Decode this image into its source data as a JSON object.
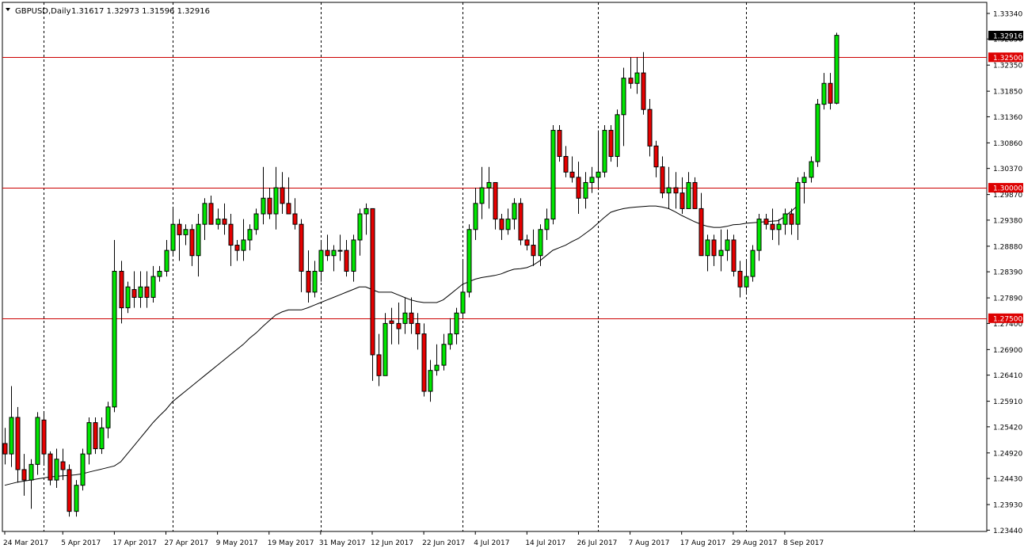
{
  "header": {
    "symbol_text": "GBPUSD,Daily",
    "ohlc_text": "1.31617 1.32973 1.31596 1.32916"
  },
  "colors": {
    "background": "#ffffff",
    "frame": "#000000",
    "bull": "#00e600",
    "bear": "#e60000",
    "wick": "#000000",
    "level_line": "#cc0000",
    "level_label_bg": "#dd0000",
    "current_label_bg": "#000000",
    "moving_average": "#000000",
    "grid": "#000000"
  },
  "chart_data": {
    "type": "candlestick",
    "symbol": "GBPUSD",
    "timeframe": "Daily",
    "grid": "vertical dashed",
    "ylim": [
      1.234,
      1.334
    ],
    "y_ticks": [
      "1.33340",
      "1.32850",
      "1.32350",
      "1.31850",
      "1.31360",
      "1.30860",
      "1.30370",
      "1.29870",
      "1.29380",
      "1.28880",
      "1.28390",
      "1.27890",
      "1.27400",
      "1.26900",
      "1.26410",
      "1.25910",
      "1.25420",
      "1.24920",
      "1.24430",
      "1.23930",
      "1.23440"
    ],
    "x_ticks": [
      {
        "i": 0,
        "label": "24 Mar 2017"
      },
      {
        "i": 9,
        "label": "5 Apr 2017"
      },
      {
        "i": 17,
        "label": "17 Apr 2017"
      },
      {
        "i": 25,
        "label": "27 Apr 2017"
      },
      {
        "i": 33,
        "label": "9 May 2017"
      },
      {
        "i": 41,
        "label": "19 May 2017"
      },
      {
        "i": 49,
        "label": "31 May 2017"
      },
      {
        "i": 57,
        "label": "12 Jun 2017"
      },
      {
        "i": 65,
        "label": "22 Jun 2017"
      },
      {
        "i": 73,
        "label": "4 Jul 2017"
      },
      {
        "i": 81,
        "label": "14 Jul 2017"
      },
      {
        "i": 89,
        "label": "26 Jul 2017"
      },
      {
        "i": 97,
        "label": "7 Aug 2017"
      },
      {
        "i": 105,
        "label": "17 Aug 2017"
      },
      {
        "i": 113,
        "label": "29 Aug 2017"
      },
      {
        "i": 121,
        "label": "8 Sep 2017"
      }
    ],
    "grid_lines_at": [
      6,
      26,
      49,
      71,
      92,
      115,
      141
    ],
    "horizontal_levels": [
      {
        "value": 1.325,
        "label": "1.32500"
      },
      {
        "value": 1.3,
        "label": "1.30000"
      },
      {
        "value": 1.275,
        "label": "1.27500"
      }
    ],
    "current_price": {
      "value": 1.32916,
      "label": "1.32916"
    },
    "candles": [
      [
        1.251,
        1.254,
        1.247,
        1.249
      ],
      [
        1.249,
        1.262,
        1.2465,
        1.256
      ],
      [
        1.256,
        1.258,
        1.2435,
        1.246
      ],
      [
        1.246,
        1.249,
        1.241,
        1.244
      ],
      [
        1.244,
        1.248,
        1.2385,
        1.247
      ],
      [
        1.247,
        1.257,
        1.245,
        1.256
      ],
      [
        1.2555,
        1.257,
        1.247,
        1.249
      ],
      [
        1.249,
        1.2495,
        1.243,
        1.244
      ],
      [
        1.244,
        1.25,
        1.2425,
        1.248
      ],
      [
        1.2475,
        1.25,
        1.244,
        1.246
      ],
      [
        1.246,
        1.247,
        1.237,
        1.238
      ],
      [
        1.238,
        1.244,
        1.237,
        1.243
      ],
      [
        1.243,
        1.25,
        1.242,
        1.249
      ],
      [
        1.249,
        1.256,
        1.247,
        1.255
      ],
      [
        1.255,
        1.256,
        1.249,
        1.25
      ],
      [
        1.25,
        1.256,
        1.249,
        1.254
      ],
      [
        1.254,
        1.259,
        1.252,
        1.258
      ],
      [
        1.258,
        1.29,
        1.257,
        1.284
      ],
      [
        1.284,
        1.286,
        1.274,
        1.277
      ],
      [
        1.277,
        1.282,
        1.276,
        1.281
      ],
      [
        1.2805,
        1.284,
        1.277,
        1.279
      ],
      [
        1.279,
        1.284,
        1.277,
        1.281
      ],
      [
        1.281,
        1.284,
        1.277,
        1.279
      ],
      [
        1.279,
        1.285,
        1.278,
        1.283
      ],
      [
        1.283,
        1.285,
        1.282,
        1.284
      ],
      [
        1.284,
        1.29,
        1.283,
        1.288
      ],
      [
        1.288,
        1.296,
        1.287,
        1.293
      ],
      [
        1.293,
        1.294,
        1.286,
        1.291
      ],
      [
        1.291,
        1.293,
        1.289,
        1.292
      ],
      [
        1.292,
        1.293,
        1.285,
        1.287
      ],
      [
        1.287,
        1.295,
        1.283,
        1.293
      ],
      [
        1.293,
        1.298,
        1.29,
        1.297
      ],
      [
        1.297,
        1.2985,
        1.293,
        1.293
      ],
      [
        1.293,
        1.296,
        1.292,
        1.294
      ],
      [
        1.294,
        1.297,
        1.291,
        1.293
      ],
      [
        1.293,
        1.295,
        1.285,
        1.289
      ],
      [
        1.289,
        1.29,
        1.286,
        1.288
      ],
      [
        1.288,
        1.294,
        1.286,
        1.29
      ],
      [
        1.29,
        1.293,
        1.288,
        1.292
      ],
      [
        1.292,
        1.296,
        1.291,
        1.295
      ],
      [
        1.295,
        1.304,
        1.293,
        1.298
      ],
      [
        1.298,
        1.3,
        1.294,
        1.295
      ],
      [
        1.295,
        1.304,
        1.292,
        1.3
      ],
      [
        1.3,
        1.303,
        1.295,
        1.297
      ],
      [
        1.297,
        1.302,
        1.295,
        1.295
      ],
      [
        1.295,
        1.298,
        1.292,
        1.293
      ],
      [
        1.293,
        1.294,
        1.28,
        1.284
      ],
      [
        1.284,
        1.288,
        1.278,
        1.28
      ],
      [
        1.28,
        1.286,
        1.279,
        1.284
      ],
      [
        1.284,
        1.29,
        1.282,
        1.288
      ],
      [
        1.288,
        1.291,
        1.286,
        1.287
      ],
      [
        1.287,
        1.289,
        1.284,
        1.288
      ],
      [
        1.288,
        1.291,
        1.286,
        1.288
      ],
      [
        1.288,
        1.29,
        1.283,
        1.284
      ],
      [
        1.284,
        1.291,
        1.282,
        1.29
      ],
      [
        1.29,
        1.296,
        1.287,
        1.295
      ],
      [
        1.295,
        1.297,
        1.291,
        1.296
      ],
      [
        1.296,
        1.296,
        1.263,
        1.268
      ],
      [
        1.268,
        1.272,
        1.262,
        1.264
      ],
      [
        1.264,
        1.276,
        1.264,
        1.274
      ],
      [
        1.2745,
        1.277,
        1.27,
        1.274
      ],
      [
        1.274,
        1.278,
        1.27,
        1.273
      ],
      [
        1.274,
        1.279,
        1.272,
        1.276
      ],
      [
        1.276,
        1.279,
        1.272,
        1.274
      ],
      [
        1.274,
        1.276,
        1.269,
        1.272
      ],
      [
        1.272,
        1.274,
        1.26,
        1.261
      ],
      [
        1.261,
        1.267,
        1.259,
        1.265
      ],
      [
        1.265,
        1.27,
        1.264,
        1.266
      ],
      [
        1.266,
        1.272,
        1.265,
        1.27
      ],
      [
        1.27,
        1.275,
        1.269,
        1.272
      ],
      [
        1.272,
        1.277,
        1.27,
        1.276
      ],
      [
        1.276,
        1.286,
        1.275,
        1.28
      ],
      [
        1.28,
        1.293,
        1.279,
        1.292
      ],
      [
        1.292,
        1.3,
        1.29,
        1.297
      ],
      [
        1.297,
        1.304,
        1.294,
        1.3
      ],
      [
        1.3,
        1.304,
        1.296,
        1.301
      ],
      [
        1.301,
        1.301,
        1.292,
        1.294
      ],
      [
        1.294,
        1.295,
        1.29,
        1.292
      ],
      [
        1.292,
        1.296,
        1.291,
        1.294
      ],
      [
        1.294,
        1.298,
        1.292,
        1.297
      ],
      [
        1.297,
        1.298,
        1.289,
        1.29
      ],
      [
        1.29,
        1.291,
        1.288,
        1.289
      ],
      [
        1.289,
        1.292,
        1.285,
        1.287
      ],
      [
        1.287,
        1.293,
        1.285,
        1.292
      ],
      [
        1.292,
        1.296,
        1.29,
        1.294
      ],
      [
        1.294,
        1.312,
        1.293,
        1.311
      ],
      [
        1.311,
        1.312,
        1.305,
        1.306
      ],
      [
        1.306,
        1.308,
        1.302,
        1.303
      ],
      [
        1.303,
        1.306,
        1.301,
        1.302
      ],
      [
        1.302,
        1.305,
        1.295,
        1.298
      ],
      [
        1.298,
        1.303,
        1.296,
        1.301
      ],
      [
        1.301,
        1.304,
        1.299,
        1.302
      ],
      [
        1.302,
        1.311,
        1.3,
        1.303
      ],
      [
        1.303,
        1.312,
        1.302,
        1.311
      ],
      [
        1.311,
        1.312,
        1.305,
        1.306
      ],
      [
        1.306,
        1.315,
        1.304,
        1.314
      ],
      [
        1.314,
        1.323,
        1.308,
        1.321
      ],
      [
        1.321,
        1.325,
        1.319,
        1.32
      ],
      [
        1.32,
        1.325,
        1.318,
        1.322
      ],
      [
        1.322,
        1.326,
        1.314,
        1.315
      ],
      [
        1.315,
        1.317,
        1.306,
        1.308
      ],
      [
        1.308,
        1.309,
        1.302,
        1.304
      ],
      [
        1.304,
        1.306,
        1.298,
        1.299
      ],
      [
        1.299,
        1.304,
        1.296,
        1.3
      ],
      [
        1.3,
        1.303,
        1.296,
        1.299
      ],
      [
        1.299,
        1.302,
        1.295,
        1.296
      ],
      [
        1.296,
        1.303,
        1.296,
        1.301
      ],
      [
        1.301,
        1.302,
        1.296,
        1.296
      ],
      [
        1.296,
        1.299,
        1.287,
        1.287
      ],
      [
        1.287,
        1.291,
        1.284,
        1.29
      ],
      [
        1.29,
        1.291,
        1.285,
        1.287
      ],
      [
        1.287,
        1.292,
        1.284,
        1.288
      ],
      [
        1.288,
        1.292,
        1.286,
        1.29
      ],
      [
        1.29,
        1.291,
        1.283,
        1.284
      ],
      [
        1.284,
        1.286,
        1.279,
        1.281
      ],
      [
        1.281,
        1.286,
        1.28,
        1.283
      ],
      [
        1.283,
        1.289,
        1.282,
        1.288
      ],
      [
        1.288,
        1.295,
        1.286,
        1.294
      ],
      [
        1.294,
        1.295,
        1.292,
        1.293
      ],
      [
        1.293,
        1.296,
        1.29,
        1.292
      ],
      [
        1.292,
        1.294,
        1.289,
        1.293
      ],
      [
        1.293,
        1.296,
        1.291,
        1.295
      ],
      [
        1.295,
        1.296,
        1.291,
        1.293
      ],
      [
        1.293,
        1.302,
        1.29,
        1.301
      ],
      [
        1.301,
        1.303,
        1.297,
        1.302
      ],
      [
        1.302,
        1.306,
        1.301,
        1.305
      ],
      [
        1.305,
        1.317,
        1.304,
        1.316
      ],
      [
        1.316,
        1.322,
        1.315,
        1.32
      ],
      [
        1.32,
        1.322,
        1.315,
        1.3162
      ],
      [
        1.3162,
        1.3297,
        1.316,
        1.3292
      ]
    ],
    "moving_average": {
      "start_index": 0,
      "values": [
        1.243,
        1.2433,
        1.2436,
        1.2438,
        1.244,
        1.2442,
        1.2444,
        1.2446,
        1.2447,
        1.2448,
        1.2449,
        1.245,
        1.2452,
        1.2455,
        1.2458,
        1.2461,
        1.2464,
        1.2467,
        1.2475,
        1.249,
        1.2505,
        1.252,
        1.2535,
        1.255,
        1.2563,
        1.2575,
        1.259,
        1.26,
        1.261,
        1.262,
        1.263,
        1.264,
        1.265,
        1.266,
        1.267,
        1.268,
        1.269,
        1.27,
        1.2712,
        1.2722,
        1.2734,
        1.2745,
        1.2756,
        1.2762,
        1.2766,
        1.2766,
        1.2766,
        1.277,
        1.2775,
        1.278,
        1.2785,
        1.279,
        1.2795,
        1.28,
        1.2805,
        1.281,
        1.281,
        1.2805,
        1.28,
        1.28,
        1.28,
        1.2795,
        1.279,
        1.2785,
        1.2782,
        1.278,
        1.278,
        1.278,
        1.2785,
        1.2795,
        1.2805,
        1.2815,
        1.282,
        1.2825,
        1.2828,
        1.283,
        1.2832,
        1.2835,
        1.284,
        1.2844,
        1.2845,
        1.2847,
        1.2852,
        1.286,
        1.287,
        1.288,
        1.2885,
        1.289,
        1.2897,
        1.2903,
        1.2912,
        1.2921,
        1.2932,
        1.2943,
        1.2953,
        1.2957,
        1.296,
        1.2962,
        1.2963,
        1.2964,
        1.2965,
        1.2965,
        1.2963,
        1.296,
        1.2954,
        1.2947,
        1.2941,
        1.2935,
        1.293,
        1.2926,
        1.2924,
        1.2924,
        1.2926,
        1.2929,
        1.293,
        1.2932,
        1.2933,
        1.2934,
        1.2935,
        1.2936,
        1.2937,
        1.2945,
        1.2955,
        1.2966
      ]
    }
  }
}
